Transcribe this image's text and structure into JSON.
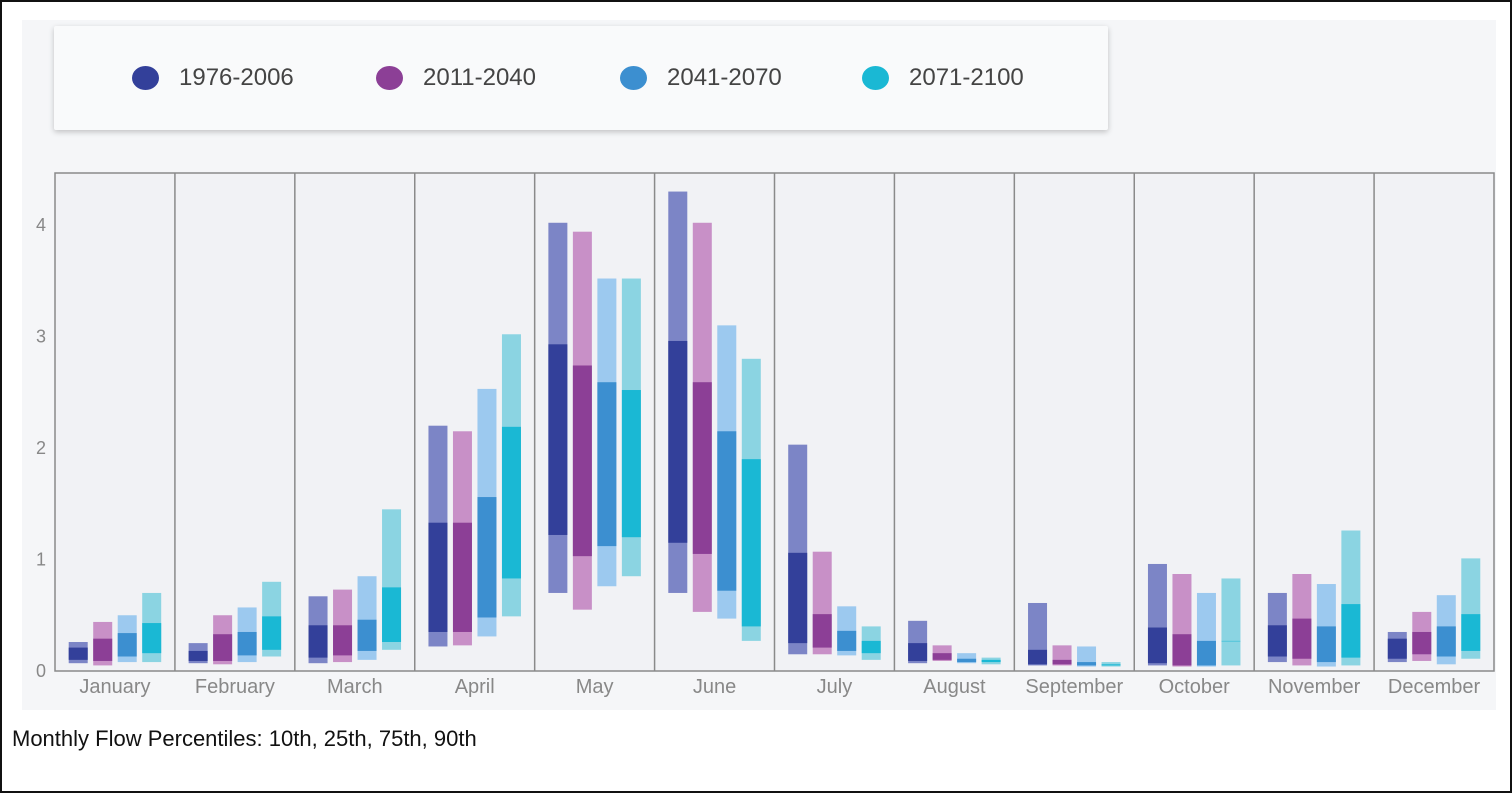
{
  "caption": "Monthly Flow Percentiles: 10th, 25th, 75th, 90th",
  "chart_data": {
    "type": "bar",
    "subtype": "floating-range-bars",
    "categories": [
      "January",
      "February",
      "March",
      "April",
      "May",
      "June",
      "July",
      "August",
      "September",
      "October",
      "November",
      "December"
    ],
    "ylim": [
      0,
      4.4
    ],
    "yticks": [
      "0",
      "1",
      "2",
      "3",
      "4"
    ],
    "grid": false,
    "legend_position": "top-left",
    "series": [
      {
        "name": "1976-2006",
        "color": "#33409a",
        "light_color": "#7c85c6",
        "p10": [
          0.07,
          0.07,
          0.07,
          0.22,
          0.7,
          0.7,
          0.15,
          0.07,
          0.05,
          0.05,
          0.08,
          0.08
        ],
        "p25": [
          0.1,
          0.09,
          0.12,
          0.35,
          1.22,
          1.15,
          0.25,
          0.09,
          0.06,
          0.07,
          0.13,
          0.11
        ],
        "p75": [
          0.21,
          0.18,
          0.41,
          1.33,
          2.93,
          2.96,
          1.06,
          0.25,
          0.19,
          0.39,
          0.41,
          0.29
        ],
        "p90": [
          0.26,
          0.25,
          0.67,
          2.2,
          4.02,
          4.3,
          2.03,
          0.45,
          0.61,
          0.96,
          0.7,
          0.35
        ]
      },
      {
        "name": "2011-2040",
        "color": "#8c3f96",
        "light_color": "#c890c7",
        "p10": [
          0.05,
          0.06,
          0.08,
          0.23,
          0.55,
          0.53,
          0.15,
          0.09,
          0.05,
          0.04,
          0.05,
          0.09
        ],
        "p25": [
          0.09,
          0.09,
          0.14,
          0.35,
          1.03,
          1.05,
          0.21,
          0.1,
          0.06,
          0.05,
          0.11,
          0.15
        ],
        "p75": [
          0.29,
          0.33,
          0.41,
          1.33,
          2.74,
          2.59,
          0.51,
          0.16,
          0.1,
          0.33,
          0.47,
          0.35
        ],
        "p90": [
          0.44,
          0.5,
          0.73,
          2.15,
          3.94,
          4.02,
          1.07,
          0.23,
          0.23,
          0.87,
          0.87,
          0.53
        ]
      },
      {
        "name": "2041-2070",
        "color": "#3c8fd0",
        "light_color": "#9cc9ef",
        "p10": [
          0.08,
          0.08,
          0.1,
          0.31,
          0.76,
          0.47,
          0.14,
          0.07,
          0.04,
          0.04,
          0.04,
          0.06
        ],
        "p25": [
          0.13,
          0.14,
          0.18,
          0.48,
          1.12,
          0.72,
          0.18,
          0.08,
          0.05,
          0.05,
          0.08,
          0.13
        ],
        "p75": [
          0.34,
          0.35,
          0.46,
          1.56,
          2.59,
          2.15,
          0.36,
          0.11,
          0.08,
          0.27,
          0.4,
          0.4
        ],
        "p90": [
          0.5,
          0.57,
          0.85,
          2.53,
          3.52,
          3.1,
          0.58,
          0.16,
          0.22,
          0.7,
          0.78,
          0.68
        ]
      },
      {
        "name": "2071-2100",
        "color": "#1ab8d4",
        "light_color": "#8bd4e2",
        "p10": [
          0.08,
          0.13,
          0.19,
          0.49,
          0.85,
          0.27,
          0.1,
          0.06,
          0.04,
          0.05,
          0.05,
          0.11
        ],
        "p25": [
          0.16,
          0.19,
          0.26,
          0.83,
          1.2,
          0.4,
          0.16,
          0.08,
          0.05,
          0.27,
          0.12,
          0.18
        ],
        "p75": [
          0.43,
          0.49,
          0.75,
          2.19,
          2.52,
          1.9,
          0.27,
          0.1,
          0.06,
          0.27,
          0.6,
          0.51
        ],
        "p90": [
          0.7,
          0.8,
          1.45,
          3.02,
          3.52,
          2.8,
          0.4,
          0.12,
          0.08,
          0.83,
          1.26,
          1.01
        ]
      }
    ]
  }
}
